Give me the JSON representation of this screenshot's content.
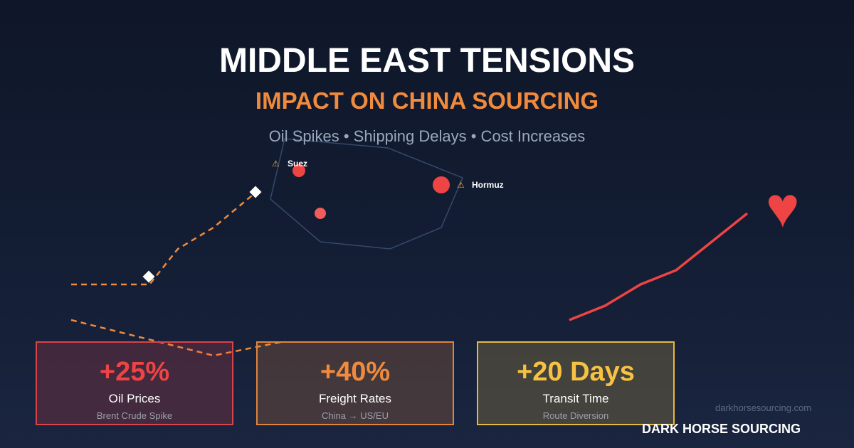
{
  "header": {
    "title": "MIDDLE EAST TENSIONS",
    "subtitle": "IMPACT ON CHINA SOURCING",
    "tagline": "Oil Spikes • Shipping Delays • Cost Increases"
  },
  "map": {
    "labels": [
      {
        "name": "Suez",
        "icon": "warning-icon"
      },
      {
        "name": "Hormuz",
        "icon": "warning-icon"
      }
    ],
    "warning_glyph": "⚠"
  },
  "decor": {
    "heart_glyph": "♥",
    "line_color": "#ef4444",
    "route_color": "#f08a3c"
  },
  "stats": [
    {
      "value": "+25%",
      "label": "Oil Prices",
      "sub": "Brent Crude Spike",
      "color": "#ef4444"
    },
    {
      "value": "+40%",
      "label": "Freight Rates",
      "sub": "China → US/EU",
      "color": "#f08a3c"
    },
    {
      "value": "+20 Days",
      "label": "Transit Time",
      "sub": "Route Diversion",
      "color": "#f5c242"
    }
  ],
  "footer": {
    "url": "darkhorsesourcing.com",
    "brand": "DARK HORSE SOURCING"
  }
}
